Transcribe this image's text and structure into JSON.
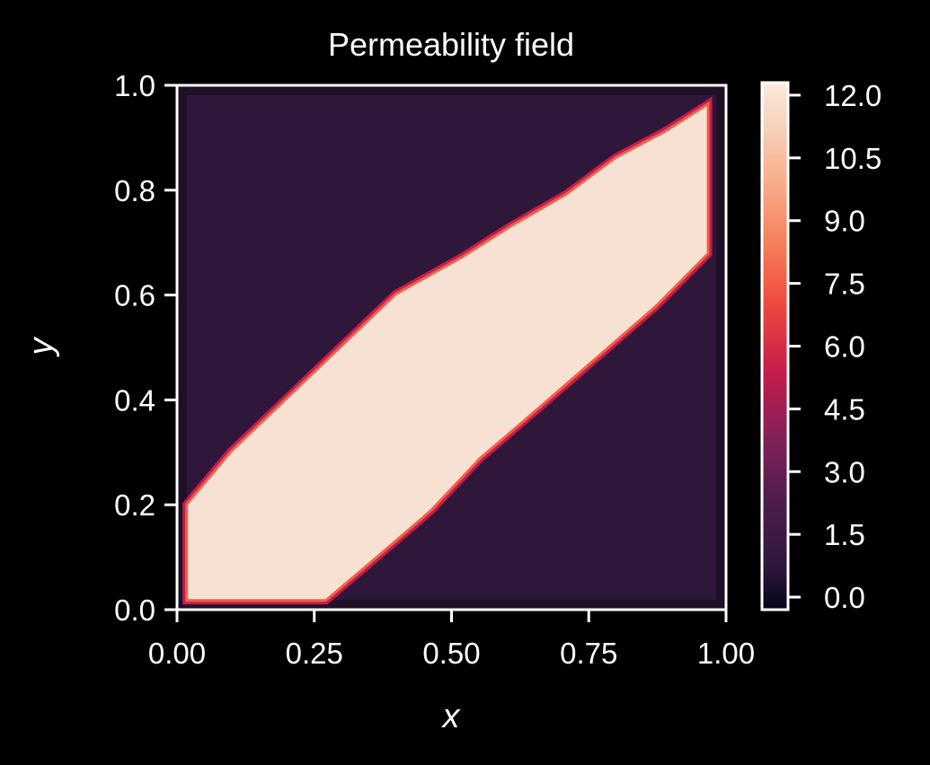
{
  "chart_data": {
    "type": "heatmap",
    "title": "Permeability field",
    "xlabel": "x",
    "ylabel": "y",
    "xlim": [
      0,
      1
    ],
    "ylim": [
      0,
      1
    ],
    "x_ticks": [
      "0.00",
      "0.25",
      "0.50",
      "0.75",
      "1.00"
    ],
    "y_ticks": [
      "0.0",
      "0.2",
      "0.4",
      "0.6",
      "0.8",
      "1.0"
    ],
    "colorbar": {
      "range": [
        -0.3,
        12.3
      ],
      "ticks": [
        "0.0",
        "1.5",
        "3.0",
        "4.5",
        "6.0",
        "7.5",
        "9.0",
        "10.5",
        "12.0"
      ],
      "colormap": "rocket"
    },
    "background_value": 1.5,
    "high_value": 12.0,
    "high_region_boundary": [
      [
        0.02,
        0.02
      ],
      [
        0.27,
        0.02
      ],
      [
        0.36,
        0.1
      ],
      [
        0.46,
        0.19
      ],
      [
        0.55,
        0.29
      ],
      [
        0.65,
        0.38
      ],
      [
        0.76,
        0.48
      ],
      [
        0.87,
        0.58
      ],
      [
        0.965,
        0.68
      ],
      [
        0.965,
        0.96
      ],
      [
        0.89,
        0.91
      ],
      [
        0.8,
        0.86
      ],
      [
        0.71,
        0.79
      ],
      [
        0.61,
        0.73
      ],
      [
        0.52,
        0.67
      ],
      [
        0.4,
        0.6
      ],
      [
        0.3,
        0.5
      ],
      [
        0.2,
        0.4
      ],
      [
        0.1,
        0.3
      ],
      [
        0.02,
        0.2
      ]
    ],
    "colors": {
      "background": "#000000",
      "low": "#2e1739",
      "edge": "#1f1026",
      "mid": "#c61b4c",
      "high": "#f7e1d2",
      "axis": "#ffffff"
    }
  }
}
